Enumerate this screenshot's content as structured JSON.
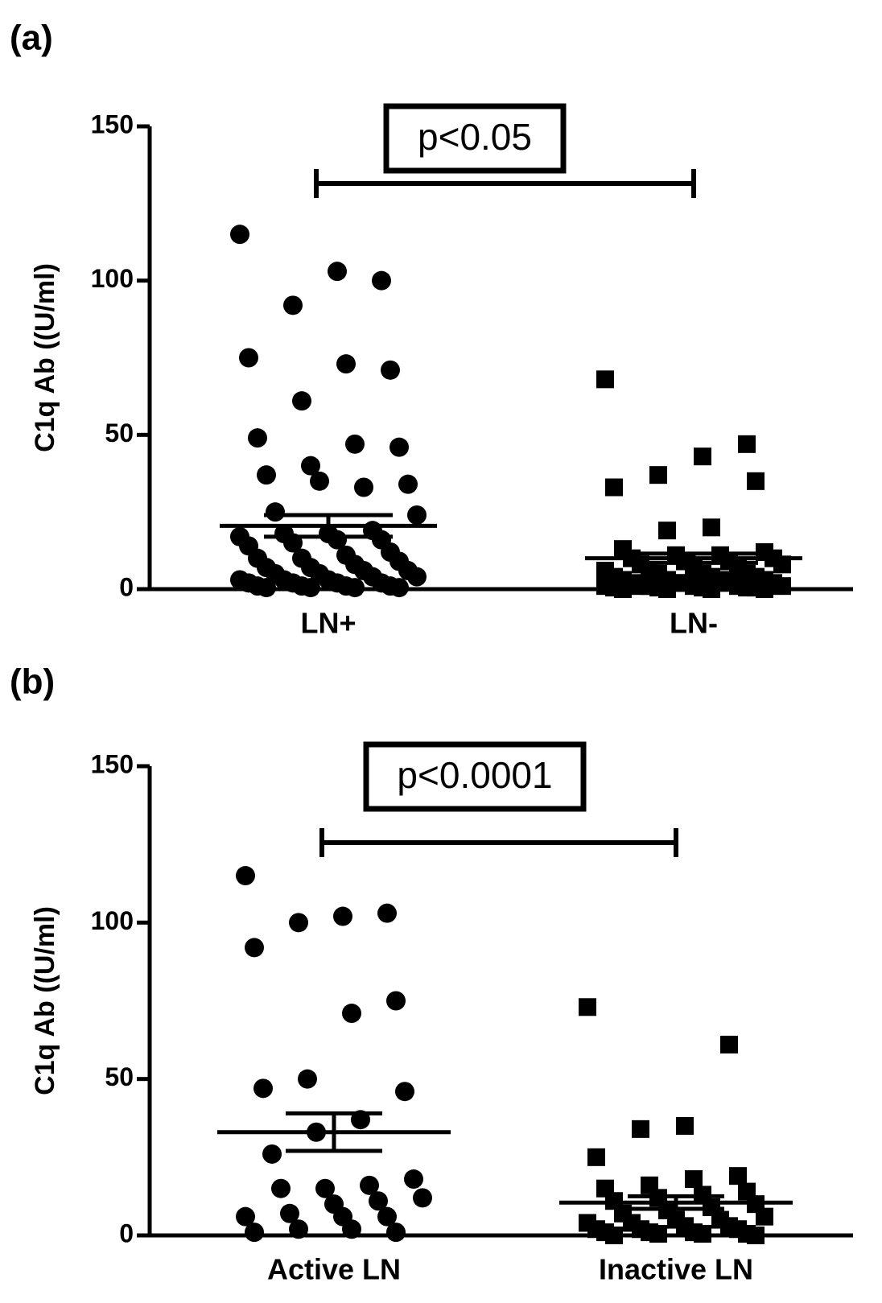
{
  "chart_data": [
    {
      "type": "dotplot",
      "panel_label": "(a)",
      "ylabel": "C1q Ab ((U/ml)",
      "annotation": "p<0.05",
      "categories": [
        "LN+",
        "LN-"
      ],
      "groups": [
        {
          "marker": "circle",
          "color": "#000000",
          "mean": 20.5,
          "sem": 3.5,
          "values": [
            115,
            100,
            103,
            92,
            75,
            71,
            73,
            61,
            49,
            46,
            47,
            40,
            37,
            34,
            33,
            35,
            25,
            24,
            19,
            18,
            18,
            17,
            16,
            16,
            15,
            14,
            12,
            11,
            10,
            10,
            9,
            8,
            7,
            7,
            6,
            6,
            5,
            5,
            4,
            4,
            3,
            3,
            3,
            2,
            2,
            2,
            2,
            1,
            1,
            1,
            1,
            0.5,
            0.5,
            0.5,
            0.5
          ]
        },
        {
          "marker": "square",
          "color": "#000000",
          "mean": 10,
          "sem": 1.5,
          "values": [
            68,
            47,
            43,
            37,
            33,
            35,
            20,
            19,
            13,
            12,
            11,
            11,
            10,
            10,
            9,
            9,
            8,
            8,
            7,
            7,
            6,
            6,
            5,
            5,
            5,
            4,
            4,
            4,
            3,
            3,
            3,
            3,
            2,
            2,
            2,
            2,
            2,
            1,
            1,
            1,
            1,
            1,
            1,
            0.5,
            0.5,
            0.5,
            0.5,
            0.5,
            0,
            0,
            0,
            0
          ]
        }
      ],
      "ylim": [
        0,
        150
      ],
      "yticks": [
        0,
        50,
        100,
        150
      ]
    },
    {
      "type": "dotplot",
      "panel_label": "(b)",
      "ylabel": "C1q Ab ((U/ml)",
      "annotation": "p<0.0001",
      "categories": [
        "Active LN",
        "Inactive LN"
      ],
      "groups": [
        {
          "marker": "circle",
          "color": "#000000",
          "mean": 33,
          "sem": 6,
          "values": [
            115,
            103,
            102,
            100,
            92,
            75,
            71,
            50,
            47,
            46,
            37,
            33,
            26,
            18,
            16,
            15,
            15,
            12,
            11,
            10,
            7,
            6,
            6,
            6,
            2,
            1,
            1,
            2
          ]
        },
        {
          "marker": "square",
          "color": "#000000",
          "mean": 10.5,
          "sem": 2,
          "values": [
            73,
            61,
            35,
            34,
            25,
            19,
            18,
            16,
            15,
            14,
            13,
            12,
            11,
            10,
            9,
            8,
            7,
            6,
            5,
            5,
            4,
            4,
            3,
            3,
            2,
            2,
            2,
            1,
            1,
            1,
            0.5,
            0.5,
            0.5,
            0,
            0
          ]
        }
      ],
      "ylim": [
        0,
        150
      ],
      "yticks": [
        0,
        50,
        100,
        150
      ]
    }
  ]
}
